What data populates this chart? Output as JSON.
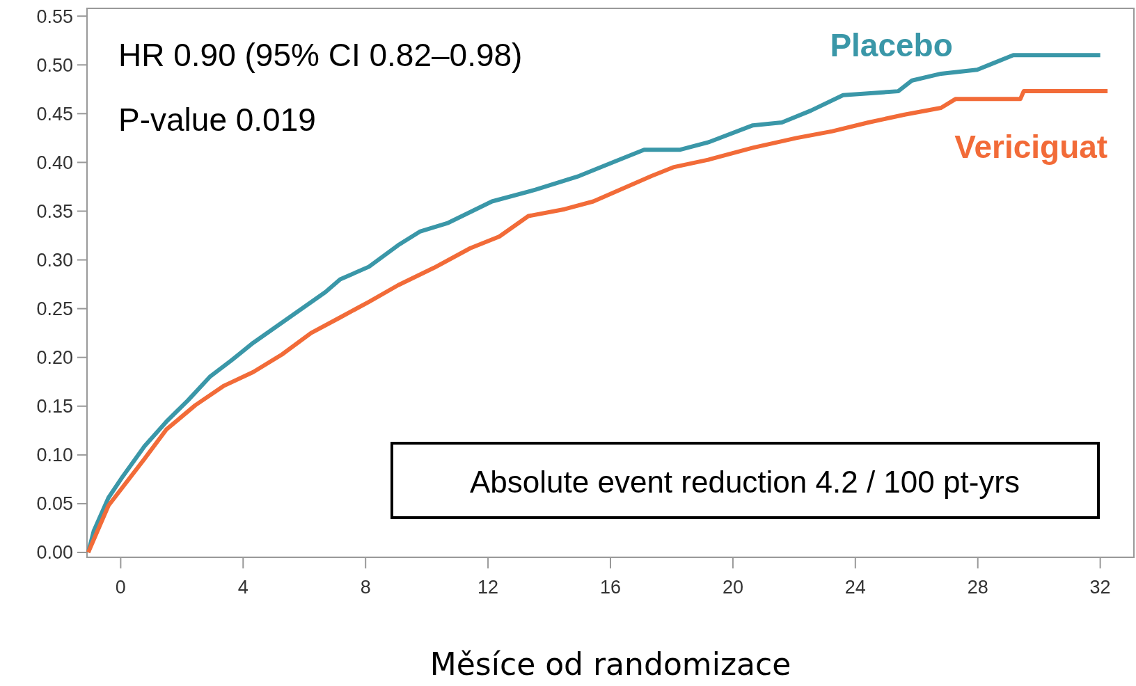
{
  "chart_data": {
    "type": "line",
    "xlabel": "Měsíce od randomizace",
    "xlim": [
      -1.1,
      33.1
    ],
    "ylim": [
      -0.005,
      0.558
    ],
    "xticks": [
      0,
      4,
      8,
      12,
      16,
      20,
      24,
      28,
      32
    ],
    "yticks": [
      {
        "value": 0,
        "label": "0.00"
      },
      {
        "value": 0.05,
        "label": "0.05"
      },
      {
        "value": 0.1,
        "label": "0.10"
      },
      {
        "value": 0.15,
        "label": "0.15"
      },
      {
        "value": 0.2,
        "label": "0.20"
      },
      {
        "value": 0.25,
        "label": "0.25"
      },
      {
        "value": 0.3,
        "label": "0.30"
      },
      {
        "value": 0.35,
        "label": "0.35"
      },
      {
        "value": 0.4,
        "label": "0.40"
      },
      {
        "value": 0.45,
        "label": "0.45"
      },
      {
        "value": 0.5,
        "label": "0.50"
      },
      {
        "value": 0.55,
        "label": "0.55"
      }
    ],
    "grid": false,
    "legend": false,
    "marker": "none",
    "line_style": "solid",
    "annotations": [
      "HR 0.90 (95% CI 0.82–0.98)",
      "P-value 0.019",
      "Absolute event reduction 4.2 / 100 pt-yrs"
    ],
    "series": [
      {
        "name": "Placebo",
        "color": "#3a97a8",
        "x": [
          -1.06,
          -0.88,
          -0.4,
          0.07,
          0.78,
          1.49,
          2.2,
          2.91,
          3.62,
          4.33,
          5.51,
          6.69,
          7.17,
          8.11,
          9.06,
          9.77,
          10.7,
          12.13,
          13.55,
          14.97,
          16.15,
          17.1,
          18.28,
          19.23,
          20.65,
          21.6,
          22.54,
          23.6,
          25.4,
          25.85,
          26.8,
          27.98,
          28.45,
          29.16,
          32.0
        ],
        "values": [
          0,
          0.022,
          0.056,
          0.078,
          0.109,
          0.134,
          0.156,
          0.18,
          0.197,
          0.215,
          0.241,
          0.267,
          0.28,
          0.293,
          0.315,
          0.329,
          0.338,
          0.36,
          0.372,
          0.386,
          0.401,
          0.413,
          0.413,
          0.421,
          0.438,
          0.441,
          0.453,
          0.469,
          0.473,
          0.484,
          0.491,
          0.495,
          0.501,
          0.51,
          0.51
        ]
      },
      {
        "name": "Vericiguat",
        "color": "#f26b38",
        "x": [
          -1.06,
          -0.4,
          0.78,
          1.49,
          2.44,
          3.38,
          4.33,
          5.27,
          6.22,
          7.17,
          8.11,
          9.06,
          10.24,
          11.42,
          12.37,
          13.32,
          14.5,
          15.44,
          16.39,
          17.34,
          18.05,
          19.23,
          20.65,
          22.07,
          23.25,
          24.43,
          25.61,
          26.8,
          27.27,
          29.39,
          29.5,
          32.24
        ],
        "values": [
          0,
          0.048,
          0.096,
          0.126,
          0.151,
          0.171,
          0.185,
          0.203,
          0.225,
          0.241,
          0.257,
          0.274,
          0.292,
          0.312,
          0.324,
          0.345,
          0.352,
          0.36,
          0.373,
          0.386,
          0.395,
          0.403,
          0.415,
          0.425,
          0.432,
          0.441,
          0.449,
          0.456,
          0.465,
          0.465,
          0.473,
          0.473
        ]
      }
    ]
  }
}
